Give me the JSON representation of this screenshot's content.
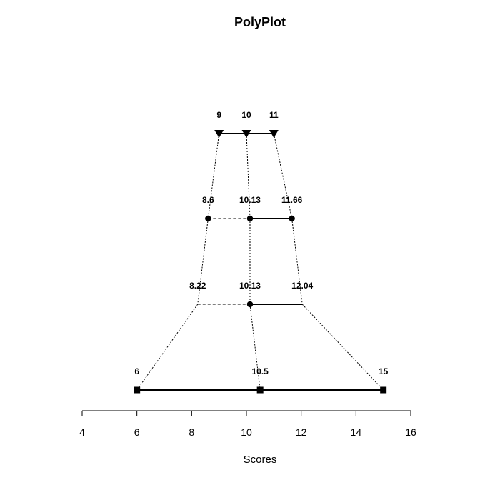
{
  "chart_data": {
    "type": "polyplot",
    "title": "PolyPlot",
    "xlabel": "Scores",
    "ylabel": "",
    "xlim": [
      4,
      16
    ],
    "x_ticks": [
      4,
      6,
      8,
      10,
      12,
      14,
      16
    ],
    "tick_labels": [
      "4",
      "6",
      "8",
      "10",
      "12",
      "14",
      "16"
    ],
    "grid": false,
    "levels": [
      {
        "marker": "triangle-down",
        "values": [
          9,
          10,
          11
        ],
        "labels": [
          "9",
          "10",
          "11"
        ],
        "segments": [
          "solid",
          "solid"
        ]
      },
      {
        "marker": "circle",
        "values": [
          8.6,
          10.13,
          11.66
        ],
        "labels": [
          "8.6",
          "10.13",
          "11.66"
        ],
        "segments": [
          "dashed",
          "solid"
        ]
      },
      {
        "marker": "none",
        "values": [
          8.22,
          10.13,
          12.04
        ],
        "labels": [
          "8.22",
          "10.13",
          "12.04"
        ],
        "segments": [
          "dashed",
          "solid"
        ],
        "center_marker": "circle"
      },
      {
        "marker": "square",
        "values": [
          6,
          10.5,
          15
        ],
        "labels": [
          "6",
          "10.5",
          "15"
        ],
        "segments": [
          "solid",
          "solid"
        ]
      }
    ],
    "connector_style": "dotted"
  }
}
